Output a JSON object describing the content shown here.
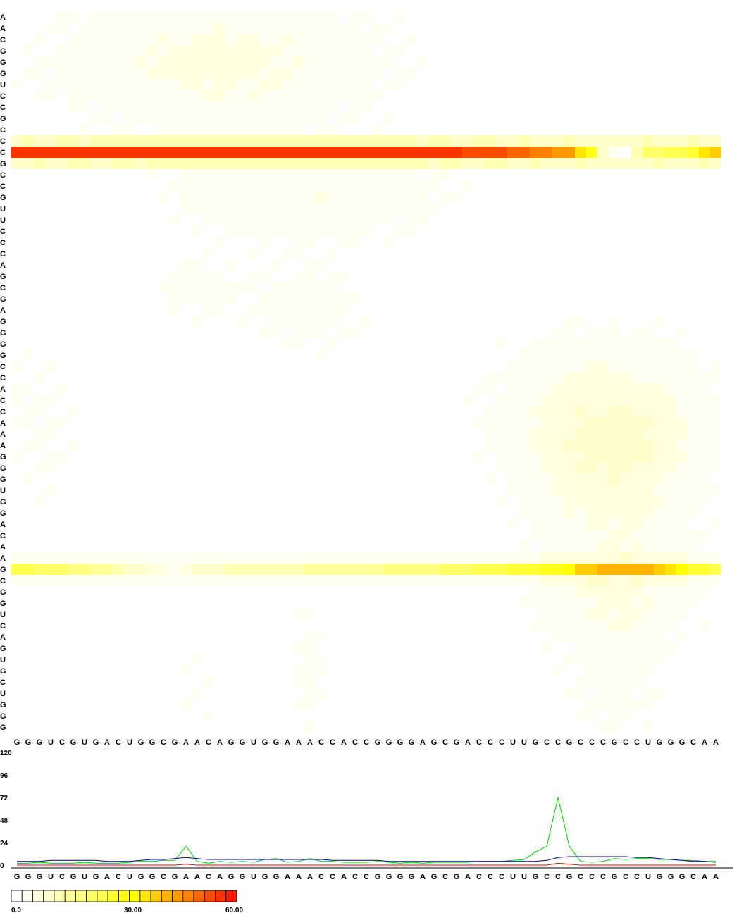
{
  "chart_data": [
    {
      "type": "heatmap",
      "x_sequence": [
        "G",
        "G",
        "G",
        "U",
        "C",
        "G",
        "U",
        "G",
        "A",
        "C",
        "U",
        "G",
        "G",
        "C",
        "G",
        "A",
        "A",
        "C",
        "A",
        "G",
        "G",
        "U",
        "G",
        "G",
        "A",
        "A",
        "A",
        "C",
        "C",
        "A",
        "C",
        "C",
        "G",
        "G",
        "G",
        "G",
        "A",
        "G",
        "C",
        "G",
        "A",
        "C",
        "C",
        "C",
        "U",
        "U",
        "G",
        "C",
        "C",
        "G",
        "C",
        "C",
        "C",
        "G",
        "C",
        "C",
        "U",
        "G",
        "G",
        "G",
        "C",
        "A",
        "A"
      ],
      "y_sequence": [
        "A",
        "A",
        "C",
        "G",
        "G",
        "G",
        "U",
        "C",
        "C",
        "G",
        "C",
        "C",
        "C",
        "G",
        "C",
        "C",
        "G",
        "U",
        "U",
        "C",
        "C",
        "C",
        "A",
        "G",
        "C",
        "G",
        "A",
        "G",
        "G",
        "G",
        "G",
        "C",
        "C",
        "A",
        "C",
        "C",
        "A",
        "A",
        "A",
        "G",
        "G",
        "G",
        "U",
        "G",
        "G",
        "A",
        "C",
        "A",
        "A",
        "G",
        "C",
        "G",
        "G",
        "U",
        "C",
        "A",
        "G",
        "U",
        "G",
        "C",
        "U",
        "G",
        "G",
        "G"
      ],
      "strong_rows": [
        {
          "row": 12,
          "peak": 60,
          "profile": [
            [
              0,
              56
            ],
            [
              39,
              56
            ],
            [
              44,
              52
            ],
            [
              49,
              44
            ],
            [
              51,
              30
            ],
            [
              52,
              10
            ],
            [
              53,
              2
            ],
            [
              54,
              1
            ],
            [
              56,
              20
            ],
            [
              60,
              26
            ],
            [
              61,
              36
            ],
            [
              62,
              40
            ],
            [
              63,
              40
            ]
          ]
        },
        {
          "row": 49,
          "peak": 45,
          "profile": [
            [
              0,
              24
            ],
            [
              6,
              18
            ],
            [
              12,
              6
            ],
            [
              14,
              3
            ],
            [
              17,
              10
            ],
            [
              36,
              18
            ],
            [
              48,
              30
            ],
            [
              50,
              38
            ],
            [
              52,
              42
            ],
            [
              56,
              42
            ],
            [
              58,
              36
            ],
            [
              60,
              28
            ],
            [
              63,
              24
            ]
          ]
        }
      ],
      "color_scale": {
        "colors": [
          "#ffffff",
          "#fffff2",
          "#ffffe0",
          "#ffffcc",
          "#ffffb3",
          "#ffff99",
          "#ffff80",
          "#ffff66",
          "#ffff4d",
          "#ffff33",
          "#ffff1a",
          "#ffff00",
          "#ffe600",
          "#ffcc00",
          "#ffb300",
          "#ff9900",
          "#ff8000",
          "#ff6600",
          "#ff4d00",
          "#ff3300",
          "#ff1a00"
        ],
        "min": 0,
        "max": 60,
        "tick_labels": [
          "0.0",
          "30.00",
          "60.00"
        ]
      }
    },
    {
      "type": "line",
      "x_sequence": [
        "G",
        "G",
        "G",
        "U",
        "C",
        "G",
        "U",
        "G",
        "A",
        "C",
        "U",
        "G",
        "G",
        "C",
        "G",
        "A",
        "A",
        "C",
        "A",
        "G",
        "G",
        "U",
        "G",
        "G",
        "A",
        "A",
        "A",
        "C",
        "C",
        "A",
        "C",
        "C",
        "G",
        "G",
        "G",
        "G",
        "A",
        "G",
        "C",
        "G",
        "A",
        "C",
        "C",
        "C",
        "U",
        "U",
        "G",
        "C",
        "C",
        "G",
        "C",
        "C",
        "C",
        "G",
        "C",
        "C",
        "U",
        "G",
        "G",
        "G",
        "C",
        "A",
        "A"
      ],
      "y_ticks": [
        "0",
        "24",
        "48",
        "72",
        "96",
        "120"
      ],
      "ylim": [
        0,
        120
      ],
      "series": [
        {
          "color": "#00cc00",
          "values": [
            2,
            2,
            3,
            2,
            2,
            2,
            3,
            2,
            2,
            2,
            3,
            4,
            4,
            5,
            5,
            20,
            4,
            2,
            4,
            3,
            4,
            3,
            6,
            7,
            3,
            4,
            7,
            4,
            4,
            3,
            3,
            3,
            4,
            3,
            2,
            3,
            2,
            3,
            3,
            3,
            3,
            4,
            4,
            4,
            5,
            6,
            14,
            20,
            72,
            20,
            4,
            3,
            4,
            7,
            6,
            7,
            7,
            6,
            6,
            5,
            5,
            4,
            4
          ]
        },
        {
          "color": "#000099",
          "values": [
            4,
            4,
            4,
            5,
            5,
            5,
            5,
            5,
            4,
            4,
            4,
            5,
            6,
            6,
            7,
            8,
            7,
            6,
            6,
            6,
            6,
            6,
            6,
            6,
            6,
            6,
            6,
            6,
            5,
            5,
            5,
            5,
            5,
            4,
            4,
            4,
            4,
            4,
            4,
            4,
            4,
            4,
            4,
            4,
            4,
            4,
            4,
            5,
            8,
            9,
            9,
            9,
            9,
            9,
            9,
            8,
            8,
            7,
            6,
            5,
            4,
            4,
            3
          ]
        },
        {
          "color": "#ff0000",
          "values": [
            0,
            0,
            0,
            0,
            0,
            0,
            0,
            0,
            0,
            0,
            0,
            0,
            0,
            0,
            0,
            1,
            0,
            0,
            0,
            0,
            0,
            0,
            0,
            0,
            0,
            0,
            0,
            0,
            0,
            0,
            0,
            0,
            0,
            0,
            0,
            0,
            0,
            0,
            0,
            0,
            0,
            0,
            0,
            0,
            0,
            0,
            0,
            0,
            2,
            1,
            0,
            0,
            0,
            0,
            0,
            0,
            0,
            0,
            0,
            0,
            0,
            0,
            0
          ]
        }
      ]
    }
  ]
}
